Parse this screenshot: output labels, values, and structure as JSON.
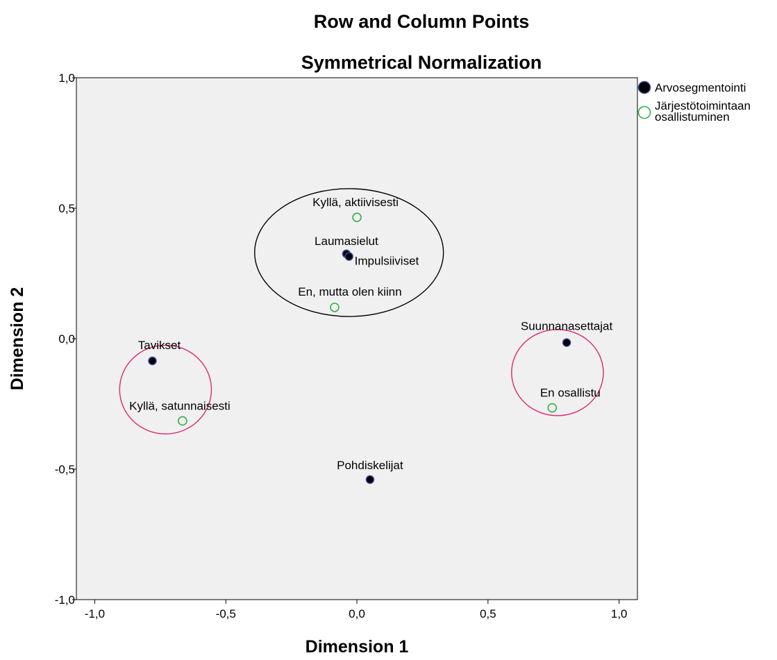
{
  "chart_data": {
    "type": "scatter",
    "title": "Row and Column Points",
    "subtitle": "Symmetrical Normalization",
    "xlabel": "Dimension 1",
    "ylabel": "Dimension 2",
    "xlim": [
      -1.07,
      1.07
    ],
    "ylim": [
      -1.0,
      1.0
    ],
    "x_ticks": [
      {
        "value": -1.0,
        "label": "-1,0"
      },
      {
        "value": -0.5,
        "label": "-0,5"
      },
      {
        "value": 0.0,
        "label": "0,0"
      },
      {
        "value": 0.5,
        "label": "0,5"
      },
      {
        "value": 1.0,
        "label": "1,0"
      }
    ],
    "y_ticks": [
      {
        "value": 1.0,
        "label": "1,0"
      },
      {
        "value": 0.5,
        "label": "0,5"
      },
      {
        "value": 0.0,
        "label": "0,0"
      },
      {
        "value": -0.5,
        "label": "-0,5"
      },
      {
        "value": -1.0,
        "label": "-1,0"
      }
    ],
    "grid": false,
    "legend_position": "top-right",
    "plot_background": "#f0f0f0",
    "series": [
      {
        "name": "Arvosegmentointi",
        "marker": "filled-circle",
        "fill_color": "#000000",
        "edge_color": "#3a4aa0",
        "points": [
          {
            "label": "Laumasielut",
            "x": -0.04,
            "y": 0.325
          },
          {
            "label": "Impulsiiviset",
            "x": -0.03,
            "y": 0.315
          },
          {
            "label": "Tavikset",
            "x": -0.78,
            "y": -0.085
          },
          {
            "label": "Suunnanasettajat",
            "x": 0.8,
            "y": -0.015
          },
          {
            "label": "Pohdiskelijat",
            "x": 0.05,
            "y": -0.54
          }
        ]
      },
      {
        "name": "Järjestötoimintaan osallistuminen",
        "marker": "open-circle",
        "edge_color": "#35b04a",
        "points": [
          {
            "label": "Kyllä, aktiivisesti",
            "x": 0.0,
            "y": 0.465
          },
          {
            "label": "En, mutta olen kiinn",
            "x": -0.085,
            "y": 0.12
          },
          {
            "label": "Kyllä, satunnaisesti",
            "x": -0.665,
            "y": -0.315
          },
          {
            "label": "En osallistu",
            "x": 0.745,
            "y": -0.265
          }
        ]
      }
    ],
    "legend": [
      {
        "lines": [
          "Arvosegmentointi"
        ]
      },
      {
        "lines": [
          "Järjestötoimintaan",
          "osallistuminen"
        ]
      }
    ],
    "cluster_ellipses": [
      {
        "cx": -0.03,
        "cy": 0.33,
        "rx": 0.36,
        "ry": 0.245,
        "color": "#000000"
      },
      {
        "cx": -0.73,
        "cy": -0.195,
        "rx": 0.175,
        "ry": 0.17,
        "color": "#e0266e"
      },
      {
        "cx": 0.765,
        "cy": -0.13,
        "rx": 0.175,
        "ry": 0.165,
        "color": "#e0266e"
      }
    ]
  }
}
